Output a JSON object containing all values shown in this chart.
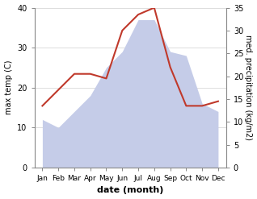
{
  "months": [
    "Jan",
    "Feb",
    "Mar",
    "Apr",
    "May",
    "Jun",
    "Jul",
    "Aug",
    "Sep",
    "Oct",
    "Nov",
    "Dec"
  ],
  "max_temp": [
    12,
    10,
    14,
    18,
    25,
    29,
    37,
    37,
    29,
    28,
    16,
    14
  ],
  "precipitation": [
    13.5,
    17,
    20.5,
    20.5,
    19.5,
    30,
    33.5,
    35,
    22,
    13.5,
    13.5,
    14.5
  ],
  "temp_fill_color": "#c5cce8",
  "precip_color": "#c0392b",
  "ylim_temp": [
    0,
    40
  ],
  "ylim_precip": [
    0,
    35
  ],
  "yticks_temp": [
    0,
    10,
    20,
    30,
    40
  ],
  "yticks_precip": [
    0,
    5,
    10,
    15,
    20,
    25,
    30,
    35
  ],
  "ylabel_left": "max temp (C)",
  "ylabel_right": "med. precipitation (kg/m2)",
  "xlabel": "date (month)",
  "bg_color": "#ffffff",
  "grid_color": "#d0d0d0",
  "spine_color": "#888888"
}
